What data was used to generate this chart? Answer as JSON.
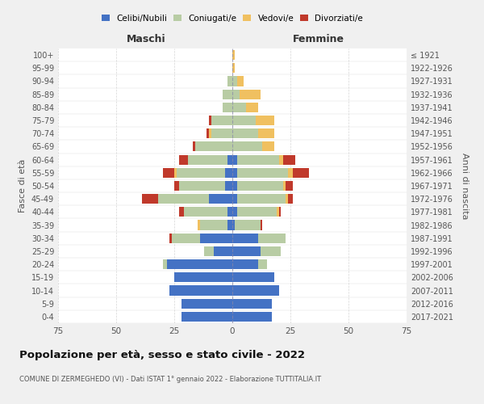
{
  "age_groups": [
    "0-4",
    "5-9",
    "10-14",
    "15-19",
    "20-24",
    "25-29",
    "30-34",
    "35-39",
    "40-44",
    "45-49",
    "50-54",
    "55-59",
    "60-64",
    "65-69",
    "70-74",
    "75-79",
    "80-84",
    "85-89",
    "90-94",
    "95-99",
    "100+"
  ],
  "birth_years": [
    "2017-2021",
    "2012-2016",
    "2007-2011",
    "2002-2006",
    "1997-2001",
    "1992-1996",
    "1987-1991",
    "1982-1986",
    "1977-1981",
    "1972-1976",
    "1967-1971",
    "1962-1966",
    "1957-1961",
    "1952-1956",
    "1947-1951",
    "1942-1946",
    "1937-1941",
    "1932-1936",
    "1927-1931",
    "1922-1926",
    "≤ 1921"
  ],
  "maschi": {
    "celibi": [
      22,
      22,
      27,
      25,
      28,
      8,
      14,
      2,
      2,
      10,
      3,
      3,
      2,
      0,
      0,
      0,
      0,
      0,
      0,
      0,
      0
    ],
    "coniugati": [
      0,
      0,
      0,
      0,
      2,
      4,
      12,
      12,
      19,
      22,
      20,
      21,
      17,
      16,
      9,
      9,
      4,
      4,
      2,
      0,
      0
    ],
    "vedovi": [
      0,
      0,
      0,
      0,
      0,
      0,
      0,
      1,
      0,
      0,
      0,
      1,
      0,
      0,
      1,
      0,
      0,
      0,
      0,
      0,
      0
    ],
    "divorziati": [
      0,
      0,
      0,
      0,
      0,
      0,
      1,
      0,
      2,
      7,
      2,
      5,
      4,
      1,
      1,
      1,
      0,
      0,
      0,
      0,
      0
    ]
  },
  "femmine": {
    "nubili": [
      17,
      17,
      20,
      18,
      11,
      12,
      11,
      1,
      2,
      2,
      2,
      2,
      2,
      0,
      0,
      0,
      0,
      0,
      0,
      0,
      0
    ],
    "coniugate": [
      0,
      0,
      0,
      0,
      4,
      9,
      12,
      11,
      17,
      21,
      20,
      22,
      18,
      13,
      11,
      10,
      6,
      3,
      2,
      0,
      0
    ],
    "vedove": [
      0,
      0,
      0,
      0,
      0,
      0,
      0,
      0,
      1,
      1,
      1,
      2,
      2,
      5,
      7,
      8,
      5,
      9,
      3,
      1,
      1
    ],
    "divorziate": [
      0,
      0,
      0,
      0,
      0,
      0,
      0,
      1,
      1,
      2,
      3,
      7,
      5,
      0,
      0,
      0,
      0,
      0,
      0,
      0,
      0
    ]
  },
  "colors": {
    "celibi": "#4472c4",
    "coniugati": "#b8cca4",
    "vedovi": "#f0c060",
    "divorziati": "#c0392b"
  },
  "title": "Popolazione per età, sesso e stato civile - 2022",
  "subtitle": "COMUNE DI ZERMEGHEDO (VI) - Dati ISTAT 1° gennaio 2022 - Elaborazione TUTTITALIA.IT",
  "xlabel_maschi": "Maschi",
  "xlabel_femmine": "Femmine",
  "ylabel": "Fasce di età",
  "ylabel_right": "Anni di nascita",
  "legend_labels": [
    "Celibi/Nubili",
    "Coniugati/e",
    "Vedovi/e",
    "Divorziati/e"
  ],
  "xlim": 75,
  "bg_color": "#f0f0f0",
  "plot_bg": "#ffffff"
}
